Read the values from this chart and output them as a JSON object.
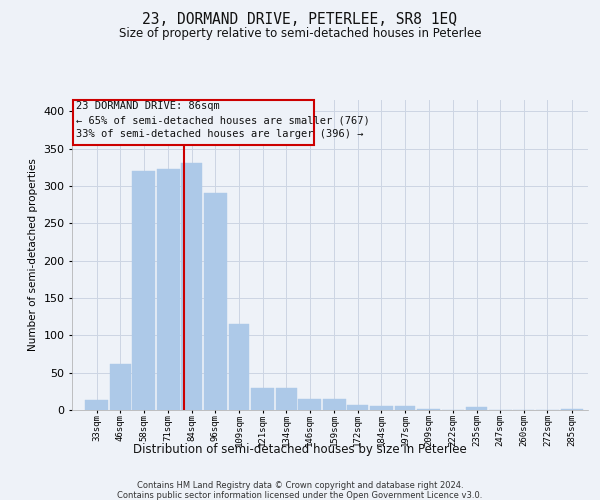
{
  "title": "23, DORMAND DRIVE, PETERLEE, SR8 1EQ",
  "subtitle": "Size of property relative to semi-detached houses in Peterlee",
  "xlabel": "Distribution of semi-detached houses by size in Peterlee",
  "ylabel": "Number of semi-detached properties",
  "footnote1": "Contains HM Land Registry data © Crown copyright and database right 2024.",
  "footnote2": "Contains public sector information licensed under the Open Government Licence v3.0.",
  "annotation_line1": "23 DORMAND DRIVE: 86sqm",
  "annotation_line2": "← 65% of semi-detached houses are smaller (767)",
  "annotation_line3": "33% of semi-detached houses are larger (396) →",
  "property_size": 86,
  "bar_left_edges": [
    33,
    46,
    58,
    71,
    84,
    96,
    109,
    121,
    134,
    146,
    159,
    172,
    184,
    197,
    209,
    222,
    235,
    247,
    260,
    272,
    285
  ],
  "bar_widths": [
    13,
    12,
    13,
    13,
    12,
    13,
    12,
    13,
    12,
    13,
    13,
    12,
    13,
    12,
    13,
    13,
    12,
    13,
    12,
    13,
    13
  ],
  "bar_heights": [
    13,
    62,
    320,
    322,
    330,
    290,
    115,
    30,
    30,
    15,
    15,
    7,
    6,
    6,
    2,
    0,
    4,
    0,
    0,
    0,
    2
  ],
  "tick_labels": [
    "33sqm",
    "46sqm",
    "58sqm",
    "71sqm",
    "84sqm",
    "96sqm",
    "109sqm",
    "121sqm",
    "134sqm",
    "146sqm",
    "159sqm",
    "172sqm",
    "184sqm",
    "197sqm",
    "209sqm",
    "222sqm",
    "235sqm",
    "247sqm",
    "260sqm",
    "272sqm",
    "285sqm"
  ],
  "bar_color": "#adc9e8",
  "bar_edgecolor": "#adc9e8",
  "redline_color": "#cc0000",
  "annotation_box_edgecolor": "#cc0000",
  "grid_color": "#ccd5e3",
  "background_color": "#eef2f8",
  "ylim": [
    0,
    415
  ],
  "yticks": [
    0,
    50,
    100,
    150,
    200,
    250,
    300,
    350,
    400
  ],
  "xlim_left": 26.5,
  "xlim_right": 300
}
